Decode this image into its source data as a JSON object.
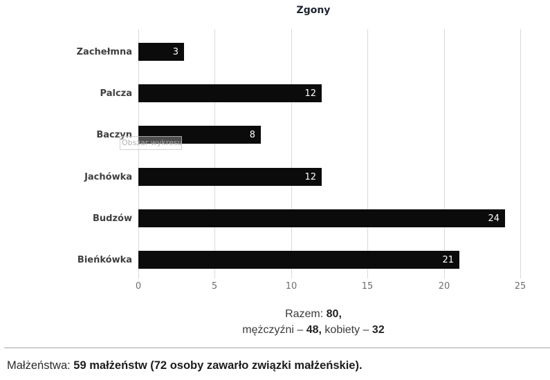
{
  "chart_data": {
    "type": "bar",
    "orientation": "horizontal",
    "title": "Zgony",
    "categories": [
      "Zachełmna",
      "Palcza",
      "Baczyn",
      "Jachówka",
      "Budzów",
      "Bieńkówka"
    ],
    "values": [
      3,
      12,
      8,
      12,
      24,
      21
    ],
    "xlabel": "",
    "ylabel": "",
    "xlim": [
      0,
      25
    ],
    "xticks": [
      0,
      5,
      10,
      15,
      20,
      25
    ],
    "grid": true,
    "bar_color": "#0b0b0b",
    "value_label_color": "#ffffff",
    "legend": "none"
  },
  "overlay": {
    "plot_area_tooltip": "Obszar wykresu"
  },
  "summary": {
    "line1_label": "Razem: ",
    "line1_value": "80,",
    "line2_label1": "mężczyźni – ",
    "line2_value1": "48,",
    "line2_label2": " kobiety – ",
    "line2_value2": "32"
  },
  "footer": {
    "label": "Małżeństwa: ",
    "value": "59 małżeństw (72 osoby zawarło związki małżeńskie)."
  }
}
